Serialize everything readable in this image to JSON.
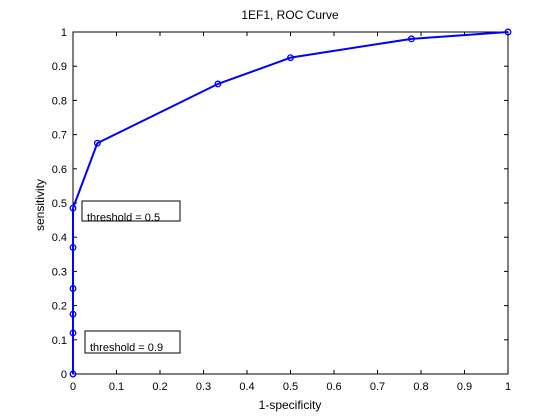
{
  "chart_data": {
    "type": "line",
    "title": "1EF1, ROC Curve",
    "xlabel": "1-specificity",
    "ylabel": "sensitivity",
    "xlim": [
      0,
      1
    ],
    "ylim": [
      0,
      1
    ],
    "xticks": [
      "0",
      "0.1",
      "0.2",
      "0.3",
      "0.4",
      "0.5",
      "0.6",
      "0.7",
      "0.8",
      "0.9",
      "1"
    ],
    "yticks": [
      "0",
      "0.1",
      "0.2",
      "0.3",
      "0.4",
      "0.5",
      "0.6",
      "0.7",
      "0.8",
      "0.9",
      "1"
    ],
    "grid": false,
    "legend": null,
    "series": [
      {
        "color": "#0000ff",
        "marker": "circle",
        "points": [
          {
            "x": 0.0,
            "y": 0.0
          },
          {
            "x": 0.0,
            "y": 0.12
          },
          {
            "x": 0.0,
            "y": 0.175
          },
          {
            "x": 0.0,
            "y": 0.25
          },
          {
            "x": 0.0,
            "y": 0.37
          },
          {
            "x": 0.0,
            "y": 0.485
          },
          {
            "x": 0.056,
            "y": 0.675
          },
          {
            "x": 0.333,
            "y": 0.848
          },
          {
            "x": 0.5,
            "y": 0.925
          },
          {
            "x": 0.778,
            "y": 0.98
          },
          {
            "x": 1.0,
            "y": 1.0
          }
        ]
      }
    ],
    "annotations": [
      {
        "text": "threshold = 0.5"
      },
      {
        "text": "threshold = 0.9"
      }
    ]
  }
}
